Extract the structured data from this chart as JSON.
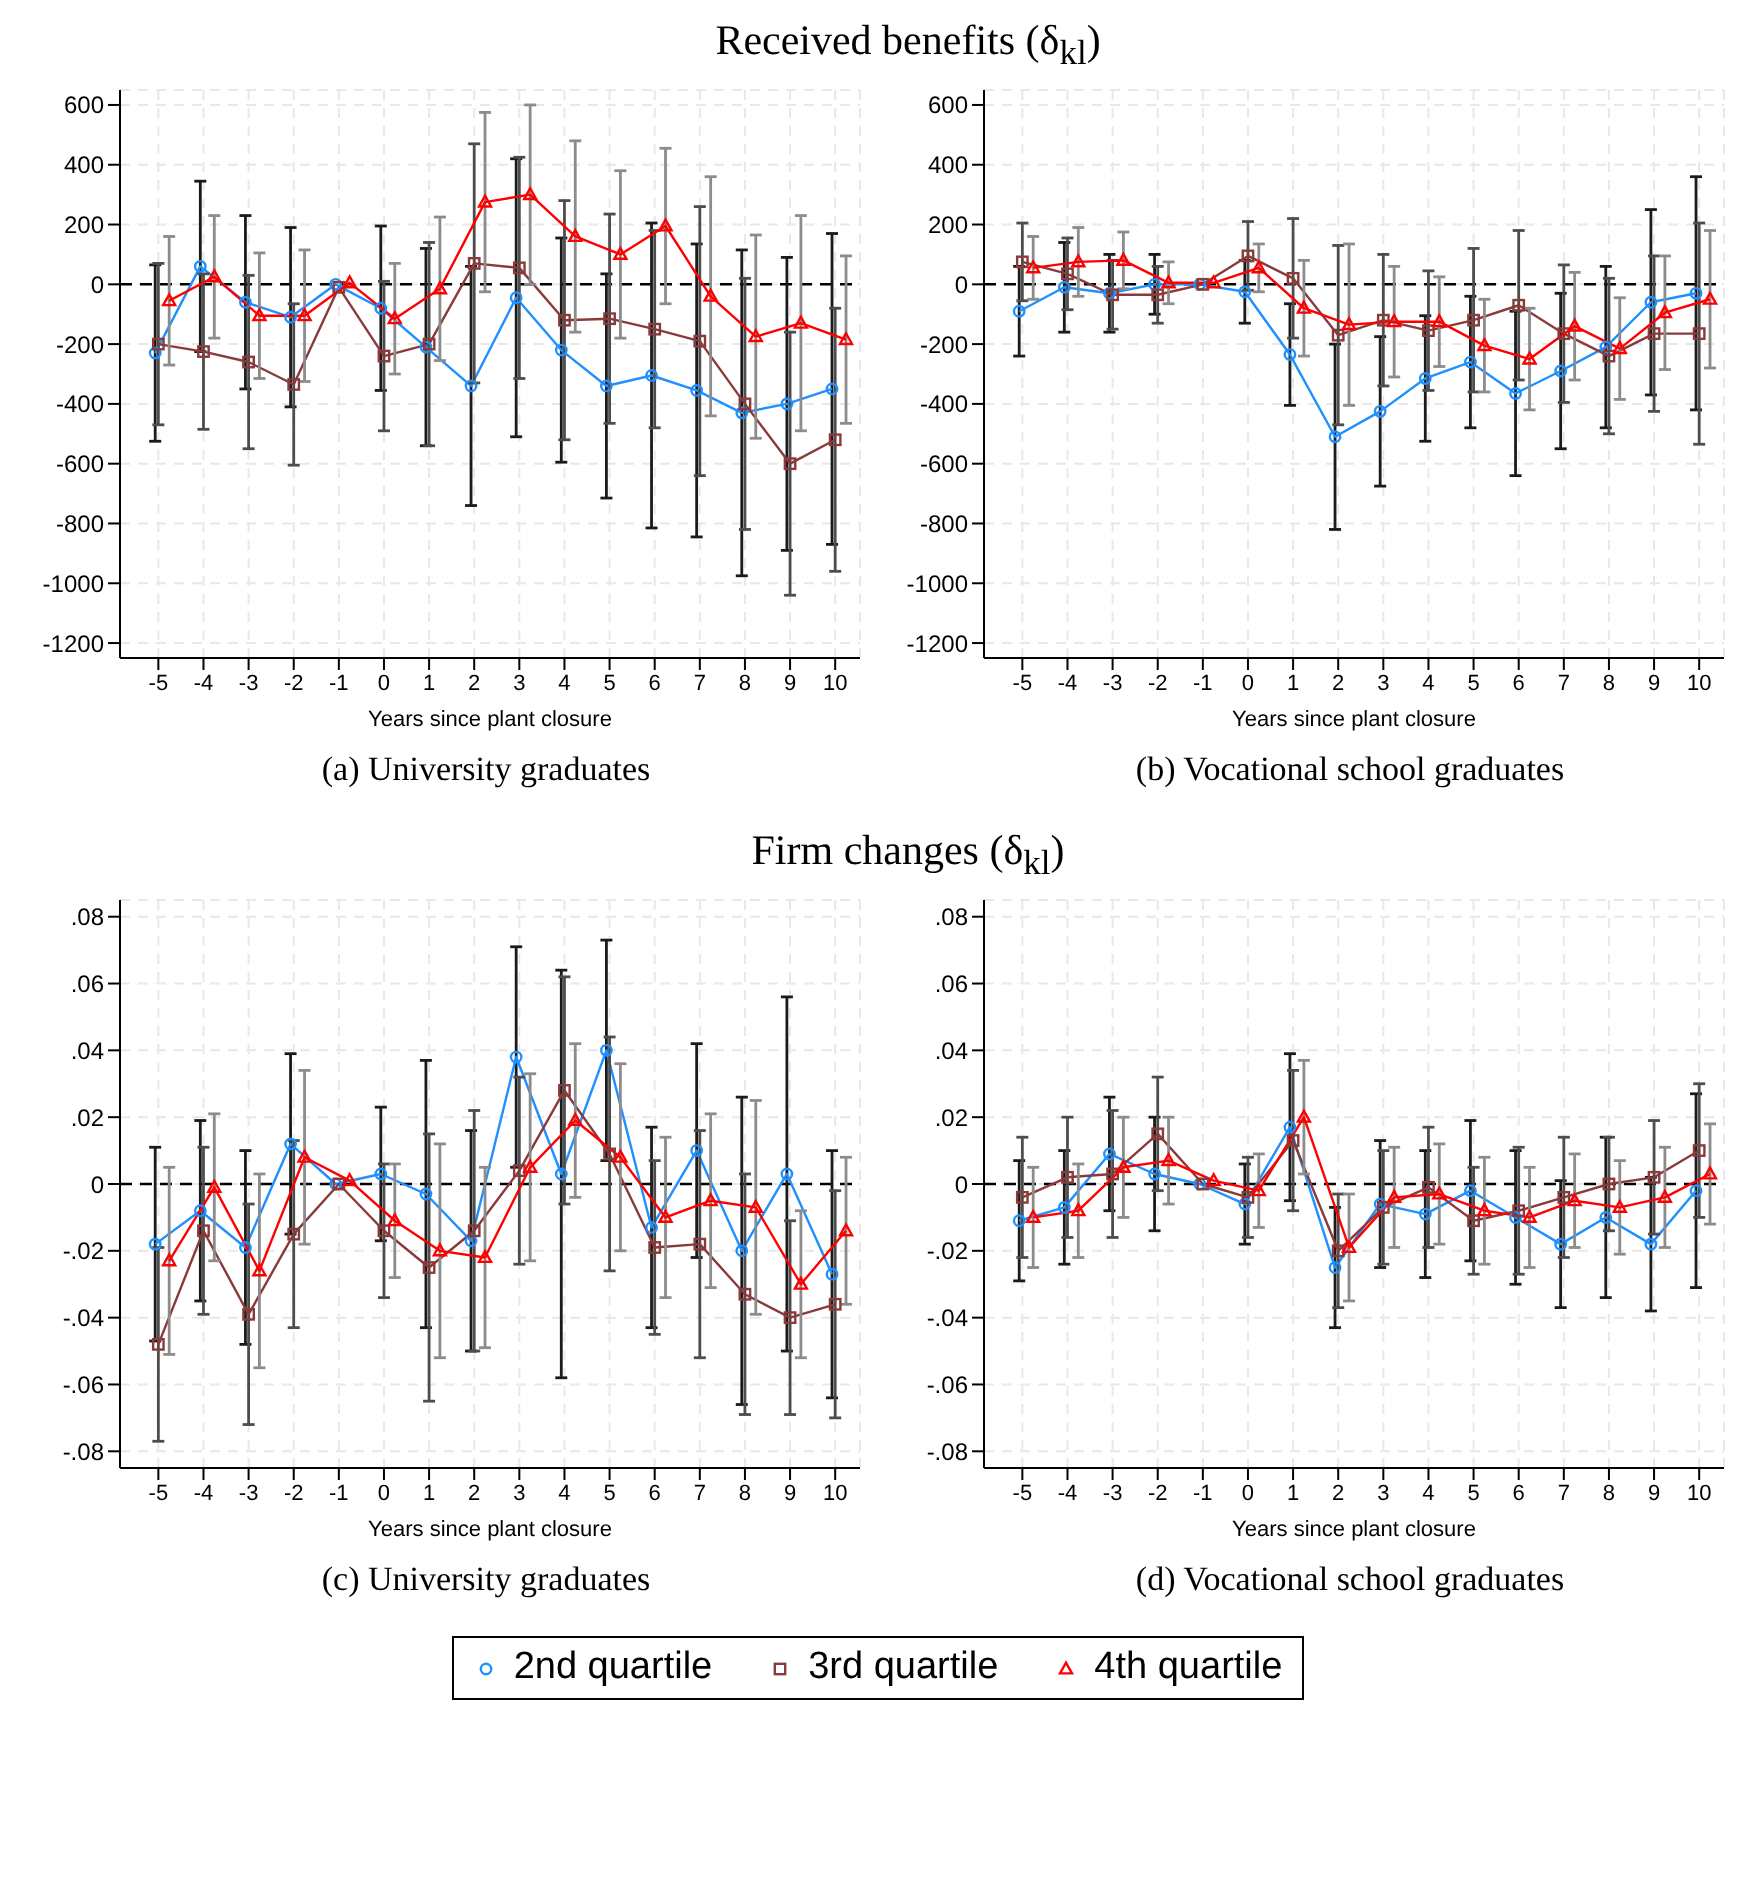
{
  "chart_data": [
    {
      "type": "line",
      "title": "Received benefits (δ$_{kl}$)",
      "xlabel": "Years since plant closure",
      "annotations": [
        "(a) University graduates"
      ],
      "x": [
        -5,
        -4,
        -3,
        -2,
        -1,
        0,
        1,
        2,
        3,
        4,
        5,
        6,
        7,
        8,
        9,
        10
      ],
      "xlim": [
        -5.85,
        10.55
      ],
      "xticks": [
        -5,
        -4,
        -3,
        -2,
        -1,
        0,
        1,
        2,
        3,
        4,
        5,
        6,
        7,
        8,
        9,
        10
      ],
      "ylim": [
        -1250,
        650
      ],
      "yticks": [
        -1200,
        -1000,
        -800,
        -600,
        -400,
        -200,
        0,
        200,
        400,
        600
      ],
      "grid": true,
      "legend": "bottom",
      "ref_lines": [
        {
          "axis": "y",
          "value": 0,
          "color": "#000000",
          "line_style": "dashed"
        }
      ],
      "series": [
        {
          "name": "2nd quartile",
          "color": "#1e90ff",
          "marker": "circle",
          "x": [
            -5.07,
            -4.07,
            -3.07,
            -2.07,
            -1.07,
            -0.07,
            0.93,
            1.93,
            2.93,
            3.93,
            4.93,
            5.93,
            6.93,
            7.93,
            8.93,
            9.93
          ],
          "values": [
            -230,
            60,
            -60,
            -110,
            0,
            -80,
            -210,
            -340,
            -45,
            -220,
            -340,
            -305,
            -355,
            -430,
            -400,
            -350
          ],
          "errors": [
            295,
            285,
            290,
            300,
            null,
            275,
            330,
            400,
            465,
            375,
            375,
            510,
            490,
            545,
            490,
            520
          ]
        },
        {
          "name": "3rd quartile",
          "color": "#8b3a3a",
          "marker": "square",
          "values": [
            -200,
            -225,
            -260,
            -335,
            -10,
            -240,
            -200,
            70,
            55,
            -120,
            -115,
            -150,
            -190,
            -400,
            -600,
            -520
          ],
          "errors": [
            270,
            260,
            290,
            270,
            null,
            250,
            340,
            400,
            370,
            400,
            350,
            330,
            450,
            420,
            440,
            440
          ]
        },
        {
          "name": "4th quartile",
          "color": "#ff0000",
          "marker": "triangle",
          "x": [
            -4.76,
            -3.76,
            -2.76,
            -1.76,
            -0.76,
            0.24,
            1.24,
            2.24,
            3.24,
            4.24,
            5.24,
            6.24,
            7.24,
            8.24,
            9.24,
            10.24
          ],
          "values": [
            -55,
            25,
            -105,
            -105,
            5,
            -115,
            -15,
            275,
            300,
            160,
            100,
            195,
            -40,
            -175,
            -130,
            -185
          ],
          "errors": [
            215,
            205,
            210,
            220,
            null,
            185,
            240,
            300,
            300,
            320,
            280,
            260,
            400,
            340,
            360,
            280
          ]
        }
      ]
    },
    {
      "type": "line",
      "xlabel": "Years since plant closure",
      "annotations": [
        "(b) Vocational school graduates"
      ],
      "x": [
        -5,
        -4,
        -3,
        -2,
        -1,
        0,
        1,
        2,
        3,
        4,
        5,
        6,
        7,
        8,
        9,
        10
      ],
      "xlim": [
        -5.85,
        10.55
      ],
      "xticks": [
        -5,
        -4,
        -3,
        -2,
        -1,
        0,
        1,
        2,
        3,
        4,
        5,
        6,
        7,
        8,
        9,
        10
      ],
      "ylim": [
        -1250,
        650
      ],
      "yticks": [
        -1200,
        -1000,
        -800,
        -600,
        -400,
        -200,
        0,
        200,
        400,
        600
      ],
      "grid": true,
      "ref_lines": [
        {
          "axis": "y",
          "value": 0,
          "color": "#000000",
          "line_style": "dashed"
        }
      ],
      "series": [
        {
          "color": "#1e90ff",
          "marker": "circle",
          "x": [
            -5.07,
            -4.07,
            -3.07,
            -2.07,
            -1.07,
            -0.07,
            0.93,
            1.93,
            2.93,
            3.93,
            4.93,
            5.93,
            6.93,
            7.93,
            8.93,
            9.93
          ],
          "values": [
            -90,
            -10,
            -30,
            0,
            0,
            -25,
            -235,
            -510,
            -425,
            -315,
            -260,
            -365,
            -290,
            -210,
            -60,
            -30
          ],
          "errors": [
            150,
            150,
            130,
            100,
            null,
            105,
            170,
            310,
            250,
            210,
            220,
            275,
            260,
            270,
            310,
            390
          ]
        },
        {
          "color": "#8b3a3a",
          "marker": "square",
          "values": [
            75,
            35,
            -35,
            -35,
            0,
            95,
            20,
            -170,
            -120,
            -155,
            -120,
            -70,
            -165,
            -240,
            -165,
            -165
          ],
          "errors": [
            130,
            120,
            115,
            95,
            null,
            115,
            200,
            300,
            220,
            200,
            240,
            250,
            230,
            260,
            260,
            370
          ]
        },
        {
          "color": "#ff0000",
          "marker": "triangle",
          "x": [
            -4.76,
            -3.76,
            -2.76,
            -1.76,
            -0.76,
            0.24,
            1.24,
            2.24,
            3.24,
            4.24,
            5.24,
            6.24,
            7.24,
            8.24,
            9.24,
            10.24
          ],
          "values": [
            55,
            75,
            80,
            5,
            5,
            55,
            -80,
            -135,
            -125,
            -125,
            -205,
            -250,
            -140,
            -215,
            -95,
            -50
          ],
          "errors": [
            105,
            115,
            95,
            70,
            null,
            80,
            160,
            270,
            185,
            150,
            155,
            170,
            180,
            170,
            190,
            230
          ]
        }
      ]
    },
    {
      "type": "line",
      "title": "Firm changes (δ$_{kl}$)",
      "xlabel": "Years since plant closure",
      "annotations": [
        "(c) University graduates"
      ],
      "x": [
        -5,
        -4,
        -3,
        -2,
        -1,
        0,
        1,
        2,
        3,
        4,
        5,
        6,
        7,
        8,
        9,
        10
      ],
      "xlim": [
        -5.85,
        10.55
      ],
      "xticks": [
        -5,
        -4,
        -3,
        -2,
        -1,
        0,
        1,
        2,
        3,
        4,
        5,
        6,
        7,
        8,
        9,
        10
      ],
      "ylim": [
        -0.085,
        0.085
      ],
      "yticks": [
        {
          "value": -0.08,
          "label": "-.08"
        },
        {
          "value": -0.06,
          "label": "-.06"
        },
        {
          "value": -0.04,
          "label": "-.04"
        },
        {
          "value": -0.02,
          "label": "-.02"
        },
        0,
        {
          "value": 0.02,
          "label": ".02"
        },
        {
          "value": 0.04,
          "label": ".04"
        },
        {
          "value": 0.06,
          "label": ".06"
        },
        {
          "value": 0.08,
          "label": ".08"
        }
      ],
      "grid": true,
      "ref_lines": [
        {
          "axis": "y",
          "value": 0,
          "color": "#000000",
          "line_style": "dashed"
        }
      ],
      "series": [
        {
          "color": "#1e90ff",
          "marker": "circle",
          "x": [
            -5.07,
            -4.07,
            -3.07,
            -2.07,
            -1.07,
            -0.07,
            0.93,
            1.93,
            2.93,
            3.93,
            4.93,
            5.93,
            6.93,
            7.93,
            8.93,
            9.93
          ],
          "values": [
            -0.018,
            -0.008,
            -0.019,
            0.012,
            0,
            0.003,
            -0.003,
            -0.017,
            0.038,
            0.003,
            0.04,
            -0.013,
            0.01,
            -0.02,
            0.003,
            -0.027
          ],
          "errors": [
            0.029,
            0.027,
            0.029,
            0.027,
            null,
            0.02,
            0.04,
            0.033,
            0.033,
            0.061,
            0.033,
            0.03,
            0.032,
            0.046,
            0.053,
            0.037
          ]
        },
        {
          "color": "#8b3a3a",
          "marker": "square",
          "values": [
            -0.048,
            -0.014,
            -0.039,
            -0.015,
            0,
            -0.014,
            -0.025,
            -0.014,
            0.004,
            0.028,
            0.009,
            -0.019,
            -0.018,
            -0.033,
            -0.04,
            -0.036
          ],
          "errors": [
            0.029,
            0.025,
            0.033,
            0.028,
            null,
            0.02,
            0.04,
            0.036,
            0.028,
            0.034,
            0.035,
            0.026,
            0.034,
            0.036,
            0.029,
            0.034
          ]
        },
        {
          "color": "#ff0000",
          "marker": "triangle",
          "x": [
            -4.76,
            -3.76,
            -2.76,
            -1.76,
            -0.76,
            0.24,
            1.24,
            2.24,
            3.24,
            4.24,
            5.24,
            6.24,
            7.24,
            8.24,
            9.24,
            10.24
          ],
          "values": [
            -0.023,
            -0.001,
            -0.026,
            0.008,
            0.001,
            -0.011,
            -0.02,
            -0.022,
            0.005,
            0.019,
            0.008,
            -0.01,
            -0.005,
            -0.007,
            -0.03,
            -0.014
          ],
          "errors": [
            0.028,
            0.022,
            0.029,
            0.026,
            null,
            0.017,
            0.032,
            0.027,
            0.028,
            0.023,
            0.028,
            0.024,
            0.026,
            0.032,
            0.022,
            0.022
          ]
        }
      ]
    },
    {
      "type": "line",
      "xlabel": "Years since plant closure",
      "annotations": [
        "(d) Vocational school graduates"
      ],
      "x": [
        -5,
        -4,
        -3,
        -2,
        -1,
        0,
        1,
        2,
        3,
        4,
        5,
        6,
        7,
        8,
        9,
        10
      ],
      "xlim": [
        -5.85,
        10.55
      ],
      "xticks": [
        -5,
        -4,
        -3,
        -2,
        -1,
        0,
        1,
        2,
        3,
        4,
        5,
        6,
        7,
        8,
        9,
        10
      ],
      "ylim": [
        -0.085,
        0.085
      ],
      "yticks": [
        {
          "value": -0.08,
          "label": "-.08"
        },
        {
          "value": -0.06,
          "label": "-.06"
        },
        {
          "value": -0.04,
          "label": "-.04"
        },
        {
          "value": -0.02,
          "label": "-.02"
        },
        0,
        {
          "value": 0.02,
          "label": ".02"
        },
        {
          "value": 0.04,
          "label": ".04"
        },
        {
          "value": 0.06,
          "label": ".06"
        },
        {
          "value": 0.08,
          "label": ".08"
        }
      ],
      "grid": true,
      "ref_lines": [
        {
          "axis": "y",
          "value": 0,
          "color": "#000000",
          "line_style": "dashed"
        }
      ],
      "series": [
        {
          "color": "#1e90ff",
          "marker": "circle",
          "x": [
            -5.07,
            -4.07,
            -3.07,
            -2.07,
            -1.07,
            -0.07,
            0.93,
            1.93,
            2.93,
            3.93,
            4.93,
            5.93,
            6.93,
            7.93,
            8.93,
            9.93
          ],
          "values": [
            -0.011,
            -0.007,
            0.009,
            0.003,
            0,
            -0.006,
            0.017,
            -0.025,
            -0.006,
            -0.009,
            -0.002,
            -0.01,
            -0.018,
            -0.01,
            -0.018,
            -0.002
          ],
          "errors": [
            0.018,
            0.017,
            0.017,
            0.017,
            null,
            0.012,
            0.022,
            0.018,
            0.019,
            0.019,
            0.021,
            0.02,
            0.019,
            0.024,
            0.02,
            0.029
          ]
        },
        {
          "color": "#8b3a3a",
          "marker": "square",
          "values": [
            -0.004,
            0.002,
            0.003,
            0.015,
            0,
            -0.004,
            0.013,
            -0.02,
            -0.007,
            -0.001,
            -0.011,
            -0.008,
            -0.004,
            0,
            0.002,
            0.01
          ],
          "errors": [
            0.018,
            0.018,
            0.019,
            0.017,
            null,
            0.012,
            0.021,
            0.017,
            0.017,
            0.018,
            0.016,
            0.019,
            0.018,
            0.014,
            0.017,
            0.02
          ]
        },
        {
          "color": "#ff0000",
          "marker": "triangle",
          "x": [
            -4.76,
            -3.76,
            -2.76,
            -1.76,
            -0.76,
            0.24,
            1.24,
            2.24,
            3.24,
            4.24,
            5.24,
            6.24,
            7.24,
            8.24,
            9.24,
            10.24
          ],
          "values": [
            -0.01,
            -0.008,
            0.005,
            0.007,
            0.001,
            -0.002,
            0.02,
            -0.019,
            -0.004,
            -0.003,
            -0.008,
            -0.01,
            -0.005,
            -0.007,
            -0.004,
            0.003
          ],
          "errors": [
            0.015,
            0.014,
            0.015,
            0.013,
            null,
            0.011,
            0.017,
            0.016,
            0.015,
            0.015,
            0.016,
            0.015,
            0.014,
            0.014,
            0.015,
            0.015
          ]
        }
      ]
    }
  ]
}
